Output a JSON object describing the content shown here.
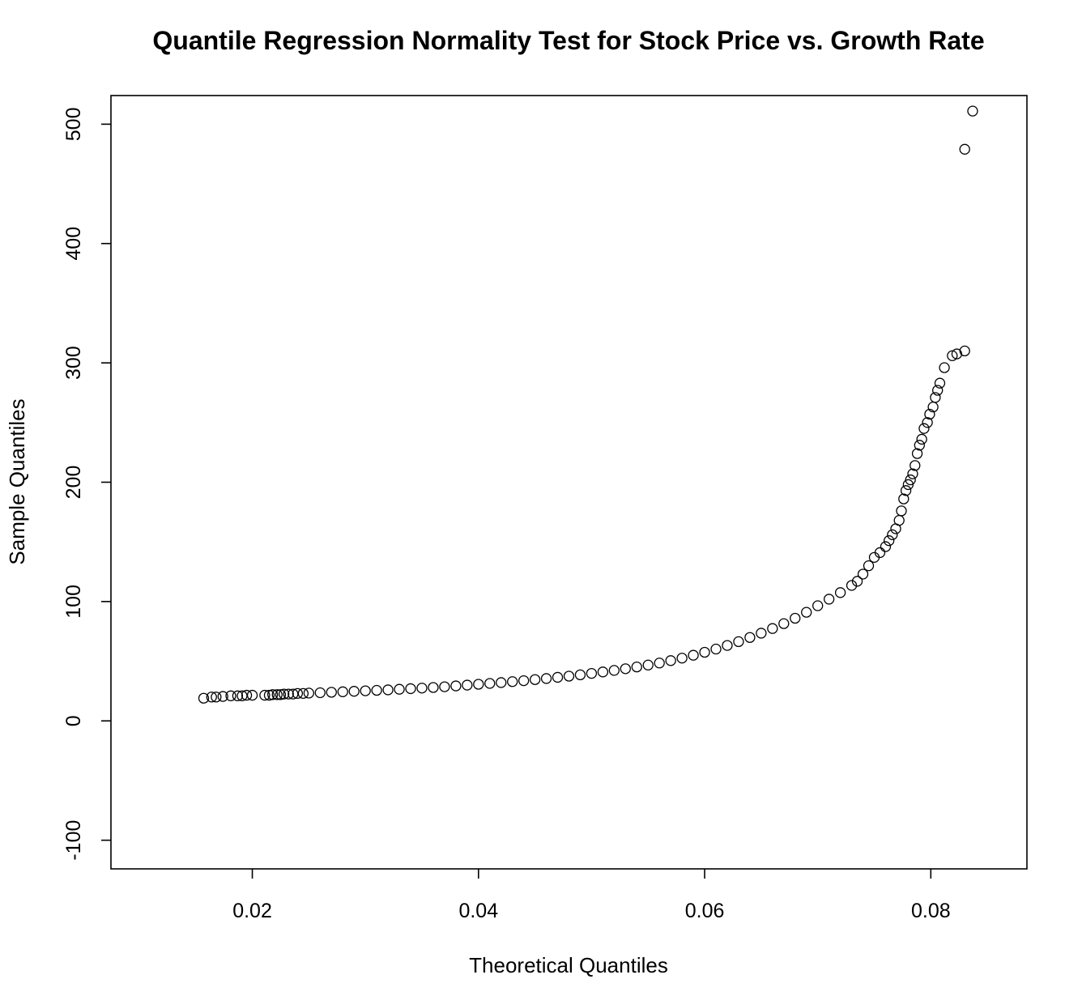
{
  "chart_data": {
    "type": "scatter",
    "title": "Quantile Regression Normality Test for Stock Price vs. Growth Rate",
    "xlabel": "Theoretical Quantiles",
    "ylabel": "Sample Quantiles",
    "xlim": [
      0.0075,
      0.0885
    ],
    "ylim": [
      -124,
      524
    ],
    "x_ticks": [
      0.02,
      0.04,
      0.06,
      0.08
    ],
    "x_tick_labels": [
      "0.02",
      "0.04",
      "0.06",
      "0.08"
    ],
    "y_ticks": [
      -100,
      0,
      100,
      200,
      300,
      400,
      500
    ],
    "y_tick_labels": [
      "-100",
      "0",
      "100",
      "200",
      "300",
      "400",
      "500"
    ],
    "grid": false,
    "legend": "none",
    "marker": "open-circle",
    "series": [
      {
        "points": [
          [
            0.0157,
            19
          ],
          [
            0.0164,
            20
          ],
          [
            0.0168,
            20
          ],
          [
            0.0174,
            20.5
          ],
          [
            0.0181,
            21
          ],
          [
            0.0187,
            21
          ],
          [
            0.0191,
            21
          ],
          [
            0.0195,
            21.5
          ],
          [
            0.02,
            21.5
          ],
          [
            0.0211,
            21.5
          ],
          [
            0.0215,
            21.5
          ],
          [
            0.0218,
            22
          ],
          [
            0.0222,
            22
          ],
          [
            0.0225,
            22
          ],
          [
            0.0228,
            22.5
          ],
          [
            0.0232,
            22.5
          ],
          [
            0.0236,
            22.5
          ],
          [
            0.024,
            23
          ],
          [
            0.0245,
            23
          ],
          [
            0.025,
            23.3
          ],
          [
            0.026,
            23.6
          ],
          [
            0.027,
            24.0
          ],
          [
            0.028,
            24.4
          ],
          [
            0.029,
            24.8
          ],
          [
            0.03,
            25.2
          ],
          [
            0.031,
            25.6
          ],
          [
            0.032,
            26.0
          ],
          [
            0.033,
            26.5
          ],
          [
            0.034,
            27.0
          ],
          [
            0.035,
            27.5
          ],
          [
            0.036,
            28.0
          ],
          [
            0.037,
            28.6
          ],
          [
            0.038,
            29.3
          ],
          [
            0.039,
            30.0
          ],
          [
            0.04,
            30.7
          ],
          [
            0.041,
            31.4
          ],
          [
            0.042,
            32.1
          ],
          [
            0.043,
            32.9
          ],
          [
            0.044,
            33.7
          ],
          [
            0.045,
            34.6
          ],
          [
            0.046,
            35.5
          ],
          [
            0.047,
            36.5
          ],
          [
            0.048,
            37.5
          ],
          [
            0.049,
            38.6
          ],
          [
            0.05,
            39.8
          ],
          [
            0.051,
            41.0
          ],
          [
            0.052,
            42.3
          ],
          [
            0.053,
            43.7
          ],
          [
            0.054,
            45.2
          ],
          [
            0.055,
            46.8
          ],
          [
            0.056,
            48.5
          ],
          [
            0.057,
            50.5
          ],
          [
            0.058,
            52.6
          ],
          [
            0.059,
            55.0
          ],
          [
            0.06,
            57.5
          ],
          [
            0.061,
            60.2
          ],
          [
            0.062,
            63.2
          ],
          [
            0.063,
            66.4
          ],
          [
            0.064,
            69.9
          ],
          [
            0.065,
            73.5
          ],
          [
            0.066,
            77.4
          ],
          [
            0.067,
            81.5
          ],
          [
            0.068,
            86.0
          ],
          [
            0.069,
            91.0
          ],
          [
            0.07,
            96.5
          ],
          [
            0.071,
            102.0
          ],
          [
            0.072,
            107.5
          ],
          [
            0.073,
            113.5
          ],
          [
            0.0735,
            117.0
          ],
          [
            0.074,
            123.0
          ],
          [
            0.0745,
            130.0
          ],
          [
            0.075,
            137.0
          ],
          [
            0.0755,
            141.0
          ],
          [
            0.076,
            146.0
          ],
          [
            0.0763,
            151.0
          ],
          [
            0.0766,
            156.0
          ],
          [
            0.0769,
            161.0
          ],
          [
            0.0772,
            168.0
          ],
          [
            0.0774,
            176.0
          ],
          [
            0.0776,
            186.0
          ],
          [
            0.0778,
            193.0
          ],
          [
            0.078,
            198.0
          ],
          [
            0.0782,
            202.0
          ],
          [
            0.0784,
            207.0
          ],
          [
            0.0786,
            214.0
          ],
          [
            0.0788,
            224.0
          ],
          [
            0.079,
            231.0
          ],
          [
            0.0792,
            236.0
          ],
          [
            0.0794,
            245.0
          ],
          [
            0.0797,
            250.0
          ],
          [
            0.0799,
            257.0
          ],
          [
            0.0802,
            263.0
          ],
          [
            0.0804,
            271.0
          ],
          [
            0.0806,
            277.0
          ],
          [
            0.0808,
            283.0
          ],
          [
            0.0812,
            296.0
          ],
          [
            0.0819,
            306.0
          ],
          [
            0.0823,
            307.5
          ],
          [
            0.083,
            310.0
          ],
          [
            0.083,
            479.0
          ],
          [
            0.0837,
            511.0
          ]
        ]
      }
    ]
  }
}
